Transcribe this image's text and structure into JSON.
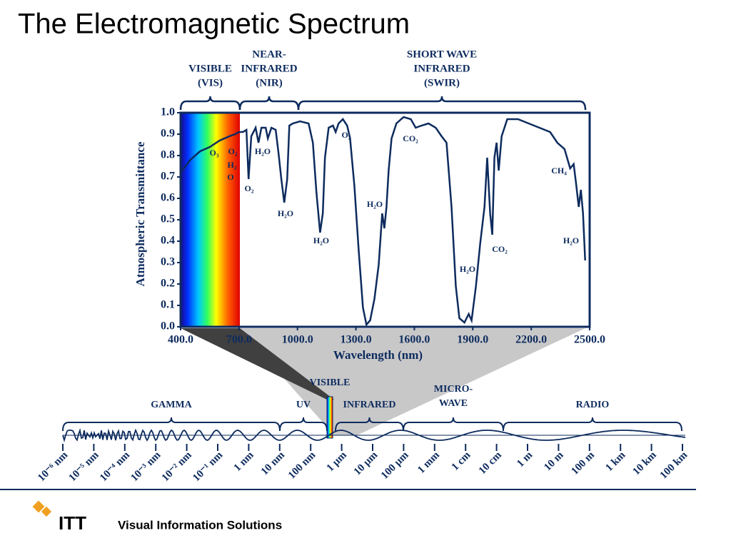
{
  "title": "The Electromagnetic Spectrum",
  "chart_data": {
    "type": "line",
    "xlabel": "Wavelength (nm)",
    "ylabel": "Atmospheric Transmittance",
    "x": [
      400,
      450,
      500,
      550,
      600,
      650,
      680,
      700,
      720,
      738,
      749,
      763,
      785,
      800,
      815,
      837,
      848,
      866,
      888,
      903,
      917,
      932,
      947,
      958,
      976,
      1013,
      1057,
      1079,
      1097,
      1116,
      1130,
      1141,
      1160,
      1182,
      1196,
      1211,
      1233,
      1255,
      1270,
      1292,
      1314,
      1336,
      1354,
      1373,
      1395,
      1417,
      1435,
      1446,
      1457,
      1468,
      1483,
      1508,
      1545,
      1582,
      1607,
      1637,
      1673,
      1710,
      1740,
      1765,
      1791,
      1813,
      1831,
      1857,
      1879,
      1894,
      1916,
      1938,
      1960,
      1974,
      1989,
      2000,
      2011,
      2022,
      2033,
      2048,
      2077,
      2132,
      2187,
      2242,
      2297,
      2334,
      2371,
      2400,
      2418,
      2429,
      2444,
      2455,
      2466,
      2477
    ],
    "values": [
      0.72,
      0.78,
      0.82,
      0.84,
      0.87,
      0.89,
      0.9,
      0.91,
      0.91,
      0.92,
      0.69,
      0.89,
      0.93,
      0.86,
      0.93,
      0.93,
      0.88,
      0.93,
      0.92,
      0.81,
      0.69,
      0.58,
      0.69,
      0.94,
      0.95,
      0.96,
      0.95,
      0.86,
      0.63,
      0.44,
      0.53,
      0.79,
      0.93,
      0.94,
      0.91,
      0.95,
      0.97,
      0.94,
      0.88,
      0.66,
      0.36,
      0.09,
      0.01,
      0.03,
      0.13,
      0.29,
      0.53,
      0.46,
      0.56,
      0.73,
      0.88,
      0.95,
      0.98,
      0.97,
      0.93,
      0.94,
      0.95,
      0.93,
      0.89,
      0.86,
      0.56,
      0.19,
      0.04,
      0.02,
      0.06,
      0.03,
      0.19,
      0.39,
      0.56,
      0.79,
      0.53,
      0.43,
      0.79,
      0.86,
      0.73,
      0.89,
      0.97,
      0.97,
      0.95,
      0.93,
      0.91,
      0.86,
      0.83,
      0.74,
      0.76,
      0.68,
      0.56,
      0.64,
      0.53,
      0.31
    ],
    "color": "#0d2b5e",
    "xlim": [
      400,
      2500
    ],
    "ylim": [
      0,
      1
    ],
    "xticks": [
      {
        "value": 400,
        "label": "400.0"
      },
      {
        "value": 700,
        "label": "700.0"
      },
      {
        "value": 1000,
        "label": "1000.0"
      },
      {
        "value": 1300,
        "label": "1300.0"
      },
      {
        "value": 1600,
        "label": "1600.0"
      },
      {
        "value": 1900,
        "label": "1900.0"
      },
      {
        "value": 2200,
        "label": "2200.0"
      },
      {
        "value": 2500,
        "label": "2500.0"
      }
    ],
    "yticks": [
      {
        "value": 0,
        "label": "0.0"
      },
      0.1,
      0.2,
      0.3,
      0.4,
      0.5,
      0.6,
      0.7,
      0.8,
      0.9,
      {
        "value": 1,
        "label": "1.0"
      }
    ],
    "annotations": [
      "O₃",
      "O₂",
      "H₂",
      "O",
      "O₂",
      "H₂O",
      "H₂O",
      "H₂O",
      "O₂",
      "H₂O",
      "CO₂",
      "H₂O",
      "CO₂",
      "CH₄",
      "H₂O"
    ],
    "regions": [
      [
        "VISIBLE",
        "(VIS)"
      ],
      [
        "NEAR-",
        "INFRARED",
        "(NIR)"
      ],
      [
        "SHORT WAVE",
        "INFRARED",
        "(SWIR)"
      ]
    ]
  },
  "spectrum": {
    "scale": [
      "10⁻⁶ nm",
      "10⁻⁵ nm",
      "10⁻⁴ nm",
      "10⁻³ nm",
      "10⁻² nm",
      "10⁻¹ nm",
      "1 nm",
      "10 nm",
      "100 nm",
      "1 µm",
      "10 µm",
      "100 µm",
      "1 mm",
      "1 cm",
      "10 cm",
      "1 m",
      "10 m",
      "100 m",
      "1 km",
      "10 km",
      "100 km"
    ],
    "bands": [
      [
        "GAMMA"
      ],
      [
        "UV"
      ],
      [
        "VISIBLE"
      ],
      [
        "INFRARED"
      ],
      [
        "MICRO-",
        "WAVE"
      ],
      [
        "RADIO"
      ]
    ]
  },
  "footer": {
    "logo": "ITT",
    "tagline": "Visual Information Solutions"
  }
}
